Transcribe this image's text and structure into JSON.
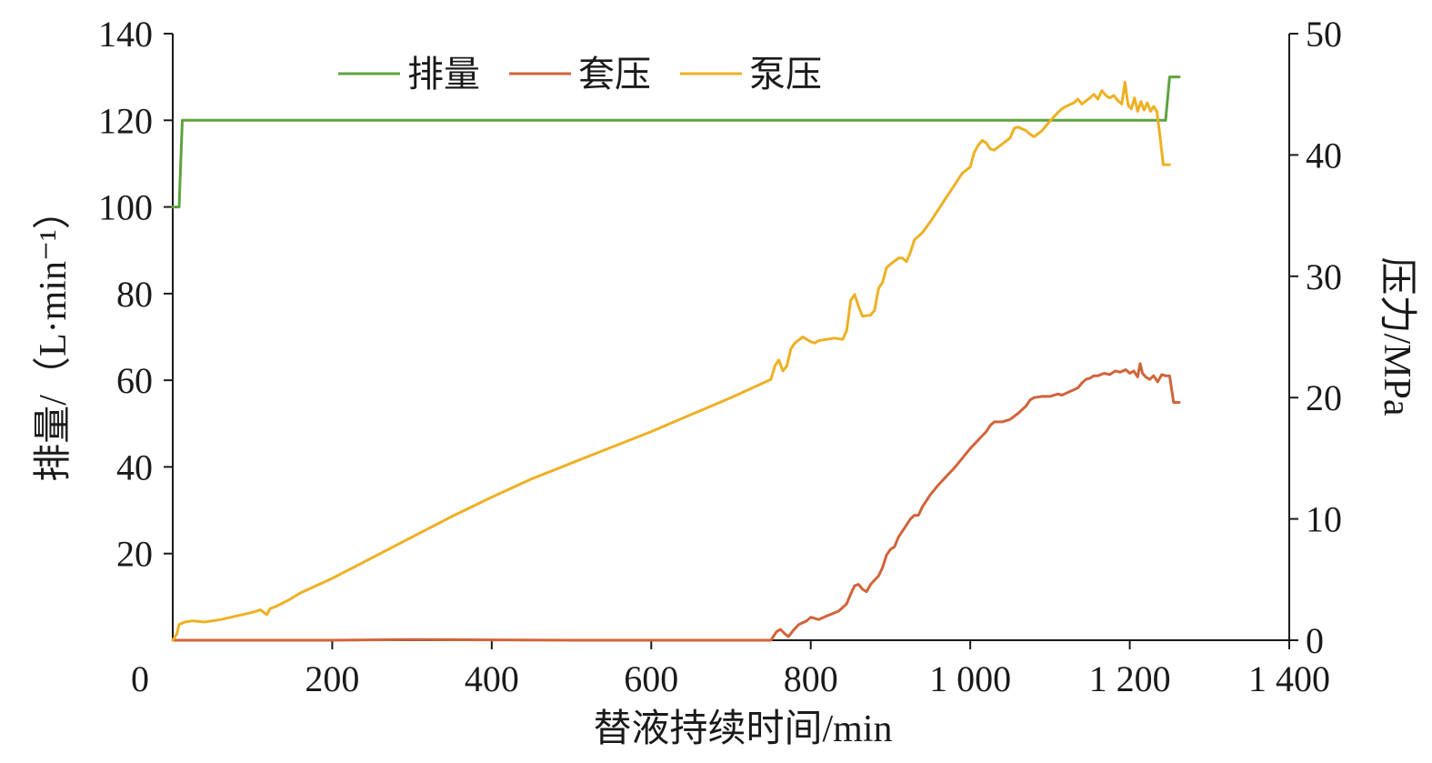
{
  "chart_data": {
    "type": "line",
    "xlabel": "替液持续时间/min",
    "ylabel_left": "排量/（L·min⁻¹）",
    "ylabel_right": "压力/MPa",
    "xlim": [
      0,
      1400
    ],
    "ylim_left": [
      0,
      140
    ],
    "ylim_right": [
      0,
      50
    ],
    "x_ticks": [
      {
        "value": 0,
        "label": "0"
      },
      {
        "value": 200,
        "label": "200"
      },
      {
        "value": 400,
        "label": "400"
      },
      {
        "value": 600,
        "label": "600"
      },
      {
        "value": 800,
        "label": "800"
      },
      {
        "value": 1000,
        "label": "1 000"
      },
      {
        "value": 1200,
        "label": "1 200"
      },
      {
        "value": 1400,
        "label": "1 400"
      }
    ],
    "y_left_ticks": [
      {
        "value": 20,
        "label": "20"
      },
      {
        "value": 40,
        "label": "40"
      },
      {
        "value": 60,
        "label": "60"
      },
      {
        "value": 80,
        "label": "80"
      },
      {
        "value": 100,
        "label": "100"
      },
      {
        "value": 120,
        "label": "120"
      },
      {
        "value": 140,
        "label": "140"
      }
    ],
    "y_right_ticks": [
      {
        "value": 0,
        "label": "0"
      },
      {
        "value": 10,
        "label": "10"
      },
      {
        "value": 20,
        "label": "20"
      },
      {
        "value": 30,
        "label": "30"
      },
      {
        "value": 40,
        "label": "40"
      },
      {
        "value": 50,
        "label": "50"
      }
    ],
    "legend_position": "top-left",
    "grid": false,
    "series": [
      {
        "name": "排量",
        "axis": "left",
        "color": "#5fa33f",
        "points": [
          [
            0,
            100
          ],
          [
            8,
            100
          ],
          [
            12,
            120
          ],
          [
            100,
            120
          ],
          [
            400,
            120
          ],
          [
            800,
            120
          ],
          [
            1100,
            120
          ],
          [
            1245,
            120
          ],
          [
            1250,
            130
          ],
          [
            1262,
            130
          ]
        ]
      },
      {
        "name": "套压",
        "axis": "right",
        "color": "#d1643a",
        "points": [
          [
            0,
            0
          ],
          [
            200,
            0
          ],
          [
            300,
            0.05
          ],
          [
            500,
            0
          ],
          [
            700,
            0
          ],
          [
            750,
            0
          ],
          [
            757,
            0.7
          ],
          [
            762,
            0.9
          ],
          [
            768,
            0.5
          ],
          [
            772,
            0.3
          ],
          [
            778,
            0.8
          ],
          [
            785,
            1.3
          ],
          [
            795,
            1.6
          ],
          [
            800,
            1.9
          ],
          [
            810,
            1.7
          ],
          [
            820,
            2
          ],
          [
            835,
            2.4
          ],
          [
            845,
            3
          ],
          [
            850,
            3.8
          ],
          [
            855,
            4.5
          ],
          [
            860,
            4.6
          ],
          [
            865,
            4.2
          ],
          [
            870,
            4
          ],
          [
            875,
            4.6
          ],
          [
            885,
            5.3
          ],
          [
            890,
            6
          ],
          [
            895,
            7
          ],
          [
            900,
            7.5
          ],
          [
            905,
            7.7
          ],
          [
            910,
            8.5
          ],
          [
            915,
            9
          ],
          [
            920,
            9.5
          ],
          [
            925,
            10
          ],
          [
            930,
            10.3
          ],
          [
            935,
            10.3
          ],
          [
            940,
            11
          ],
          [
            945,
            11.5
          ],
          [
            950,
            12
          ],
          [
            960,
            12.8
          ],
          [
            970,
            13.5
          ],
          [
            980,
            14.2
          ],
          [
            990,
            15
          ],
          [
            1000,
            15.8
          ],
          [
            1010,
            16.5
          ],
          [
            1020,
            17.2
          ],
          [
            1025,
            17.7
          ],
          [
            1030,
            18
          ],
          [
            1040,
            18
          ],
          [
            1050,
            18.2
          ],
          [
            1060,
            18.7
          ],
          [
            1070,
            19.3
          ],
          [
            1075,
            19.8
          ],
          [
            1080,
            20
          ],
          [
            1090,
            20.1
          ],
          [
            1100,
            20.1
          ],
          [
            1110,
            20.3
          ],
          [
            1115,
            20.2
          ],
          [
            1125,
            20.5
          ],
          [
            1135,
            20.8
          ],
          [
            1140,
            21.2
          ],
          [
            1145,
            21.5
          ],
          [
            1150,
            21.6
          ],
          [
            1155,
            21.8
          ],
          [
            1160,
            21.8
          ],
          [
            1168,
            22
          ],
          [
            1175,
            21.9
          ],
          [
            1182,
            22.2
          ],
          [
            1188,
            22.1
          ],
          [
            1195,
            22.3
          ],
          [
            1200,
            22
          ],
          [
            1205,
            22.2
          ],
          [
            1210,
            21.7
          ],
          [
            1213,
            22.8
          ],
          [
            1216,
            22
          ],
          [
            1220,
            21.7
          ],
          [
            1225,
            21.5
          ],
          [
            1230,
            21.8
          ],
          [
            1235,
            21.3
          ],
          [
            1240,
            21.9
          ],
          [
            1245,
            21.8
          ],
          [
            1250,
            21.8
          ],
          [
            1255,
            19.6
          ],
          [
            1262,
            19.6
          ]
        ]
      },
      {
        "name": "泵压",
        "axis": "right",
        "color": "#eeb023",
        "points": [
          [
            0,
            0
          ],
          [
            5,
            0.5
          ],
          [
            8,
            1.3
          ],
          [
            15,
            1.5
          ],
          [
            25,
            1.6
          ],
          [
            40,
            1.5
          ],
          [
            60,
            1.7
          ],
          [
            80,
            2
          ],
          [
            100,
            2.3
          ],
          [
            110,
            2.5
          ],
          [
            118,
            2.1
          ],
          [
            122,
            2.6
          ],
          [
            130,
            2.8
          ],
          [
            145,
            3.3
          ],
          [
            160,
            3.9
          ],
          [
            180,
            4.5
          ],
          [
            200,
            5.1
          ],
          [
            250,
            6.8
          ],
          [
            300,
            8.5
          ],
          [
            350,
            10.2
          ],
          [
            400,
            11.8
          ],
          [
            450,
            13.3
          ],
          [
            500,
            14.6
          ],
          [
            550,
            15.9
          ],
          [
            600,
            17.2
          ],
          [
            650,
            18.6
          ],
          [
            700,
            20
          ],
          [
            740,
            21.2
          ],
          [
            750,
            21.5
          ],
          [
            755,
            22.6
          ],
          [
            760,
            23.1
          ],
          [
            765,
            22.2
          ],
          [
            770,
            22.6
          ],
          [
            775,
            24
          ],
          [
            780,
            24.5
          ],
          [
            790,
            25
          ],
          [
            800,
            24.6
          ],
          [
            805,
            24.5
          ],
          [
            810,
            24.7
          ],
          [
            830,
            24.9
          ],
          [
            840,
            24.8
          ],
          [
            845,
            25.5
          ],
          [
            850,
            28
          ],
          [
            855,
            28.5
          ],
          [
            860,
            27.5
          ],
          [
            863,
            27
          ],
          [
            865,
            26.7
          ],
          [
            875,
            26.8
          ],
          [
            880,
            27.2
          ],
          [
            885,
            29
          ],
          [
            890,
            29.5
          ],
          [
            895,
            30.7
          ],
          [
            900,
            31
          ],
          [
            910,
            31.5
          ],
          [
            915,
            31.5
          ],
          [
            920,
            31.2
          ],
          [
            925,
            32
          ],
          [
            930,
            33
          ],
          [
            940,
            33.6
          ],
          [
            950,
            34.5
          ],
          [
            960,
            35.5
          ],
          [
            970,
            36.5
          ],
          [
            980,
            37.5
          ],
          [
            985,
            38
          ],
          [
            990,
            38.5
          ],
          [
            1000,
            39
          ],
          [
            1005,
            40.2
          ],
          [
            1010,
            40.8
          ],
          [
            1015,
            41.2
          ],
          [
            1020,
            41
          ],
          [
            1025,
            40.5
          ],
          [
            1030,
            40.4
          ],
          [
            1040,
            40.9
          ],
          [
            1050,
            41.4
          ],
          [
            1055,
            42.2
          ],
          [
            1060,
            42.3
          ],
          [
            1070,
            42
          ],
          [
            1075,
            41.7
          ],
          [
            1080,
            41.5
          ],
          [
            1090,
            42
          ],
          [
            1100,
            42.8
          ],
          [
            1110,
            43.5
          ],
          [
            1115,
            43.8
          ],
          [
            1120,
            44
          ],
          [
            1130,
            44.3
          ],
          [
            1135,
            44.6
          ],
          [
            1140,
            44.2
          ],
          [
            1150,
            44.7
          ],
          [
            1155,
            45
          ],
          [
            1160,
            44.6
          ],
          [
            1165,
            45.3
          ],
          [
            1170,
            44.9
          ],
          [
            1175,
            44.7
          ],
          [
            1180,
            44.9
          ],
          [
            1185,
            44.5
          ],
          [
            1190,
            44.2
          ],
          [
            1194,
            46
          ],
          [
            1198,
            44.1
          ],
          [
            1202,
            43.8
          ],
          [
            1206,
            44.7
          ],
          [
            1210,
            43.6
          ],
          [
            1214,
            44.4
          ],
          [
            1218,
            43.7
          ],
          [
            1222,
            44.3
          ],
          [
            1226,
            43.6
          ],
          [
            1230,
            44
          ],
          [
            1234,
            43.6
          ],
          [
            1238,
            41.5
          ],
          [
            1242,
            39.2
          ],
          [
            1250,
            39.2
          ]
        ]
      }
    ]
  }
}
